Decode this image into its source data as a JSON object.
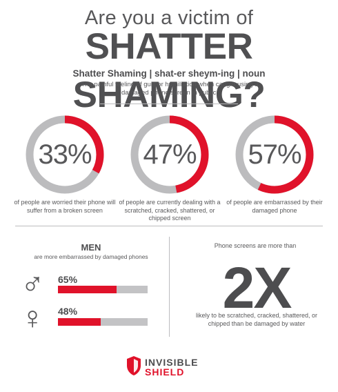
{
  "header": {
    "line1": "Are you a victim of",
    "line2": "SHATTER SHAMING?"
  },
  "definition": {
    "title": "Shatter Shaming | shat-er sheym-ing | noun",
    "text": "The painful feeling of guilt or humiliation when caught using a damaged phone screen in public."
  },
  "stats": [
    {
      "value": "33%",
      "fraction": 0.33,
      "caption": "of people are worried their phone will suffer from a broken screen"
    },
    {
      "value": "47%",
      "fraction": 0.47,
      "caption": "of people are currently dealing with a scratched, cracked, shattered, or chipped screen"
    },
    {
      "value": "57%",
      "fraction": 0.57,
      "caption": "of people are embarrassed by their damaged phone"
    }
  ],
  "gender": {
    "title": "MEN",
    "subtitle": "are more embarrassed by damaged phones",
    "male": {
      "symbol": "♂",
      "value": "65%",
      "fraction": 0.65
    },
    "female": {
      "symbol": "♀",
      "value": "48%",
      "fraction": 0.48
    }
  },
  "screens": {
    "intro": "Phone screens are more than",
    "multiplier": "2X",
    "outro": "likely to be scratched, cracked, shattered, or chipped than be damaged by water"
  },
  "logo": {
    "word1": "INVISIBLE",
    "word2": "SHIELD"
  },
  "colors": {
    "accent": "#e0122a",
    "track": "#bcbcbe",
    "text": "#4d4d4f"
  }
}
